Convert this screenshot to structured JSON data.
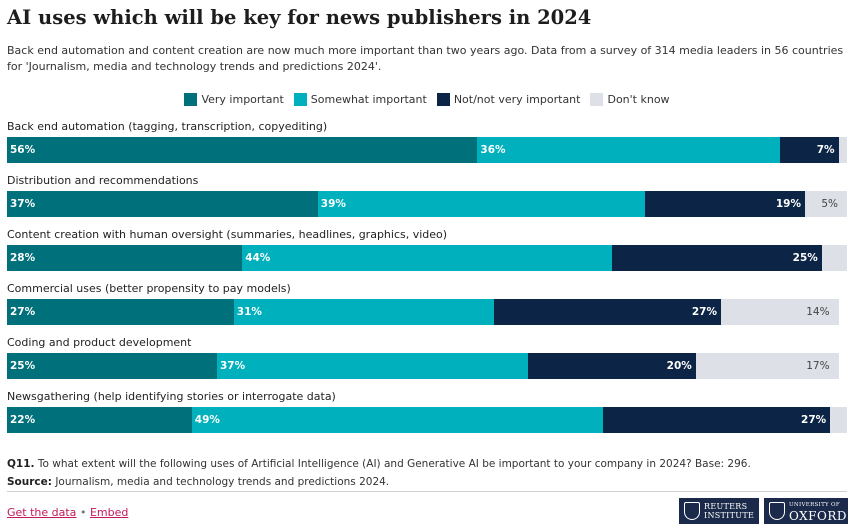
{
  "title": "AI uses which will be key for news publishers in 2024",
  "subtitle": "Back end automation and content creation are now much more important than two years ago. Data from a survey of 314 media leaders in 56 countries for 'Journalism, media and technology trends and predictions 2024'.",
  "colors": {
    "very": "#00707a",
    "somewhat": "#00b0bd",
    "not": "#0c2546",
    "dontknow": "#dde0e6"
  },
  "legend": [
    {
      "key": "very",
      "label": "Very important"
    },
    {
      "key": "somewhat",
      "label": "Somewhat important"
    },
    {
      "key": "not",
      "label": "Not/not very important"
    },
    {
      "key": "dontknow",
      "label": "Don't know"
    }
  ],
  "chart_data": {
    "type": "bar",
    "orientation": "horizontal",
    "stacked": true,
    "xlim": [
      0,
      100
    ],
    "unit": "%",
    "categories": [
      "Back end automation (tagging, transcription, copyediting)",
      "Distribution and recommendations",
      "Content creation with human oversight (summaries, headlines, graphics, video)",
      "Commercial uses (better propensity to pay models)",
      "Coding and product development",
      "Newsgathering (help identifying stories or interrogate data)"
    ],
    "series": [
      {
        "name": "Very important",
        "key": "very",
        "values": [
          56,
          37,
          28,
          27,
          25,
          22
        ],
        "labels": [
          "56%",
          "37%",
          "28%",
          "27%",
          "25%",
          "22%"
        ]
      },
      {
        "name": "Somewhat important",
        "key": "somewhat",
        "values": [
          36,
          39,
          44,
          31,
          37,
          49
        ],
        "labels": [
          "36%",
          "39%",
          "44%",
          "31%",
          "37%",
          "49%"
        ]
      },
      {
        "name": "Not/not very important",
        "key": "not",
        "values": [
          7,
          19,
          25,
          27,
          20,
          27
        ],
        "labels": [
          "7%",
          "19%",
          "25%",
          "27%",
          "20%",
          "27%"
        ]
      },
      {
        "name": "Don't know",
        "key": "dontknow",
        "values": [
          1,
          5,
          3,
          14,
          17,
          2
        ],
        "labels": [
          "",
          "5%",
          "",
          "14%",
          "17%",
          ""
        ]
      }
    ]
  },
  "footnote": {
    "q_label": "Q11.",
    "q_text": "To what extent will the following uses of Artificial Intelligence (AI) and Generative AI be important to your company in 2024? Base: 296.",
    "source_label": "Source:",
    "source_text": "Journalism, media and technology trends and predictions 2024."
  },
  "links": {
    "get_data": "Get the data",
    "separator": "•",
    "embed": "Embed"
  },
  "logos": {
    "reuters_line1": "REUTERS",
    "reuters_line2": "INSTITUTE",
    "oxford_small": "UNIVERSITY OF",
    "oxford_big": "OXFORD"
  }
}
